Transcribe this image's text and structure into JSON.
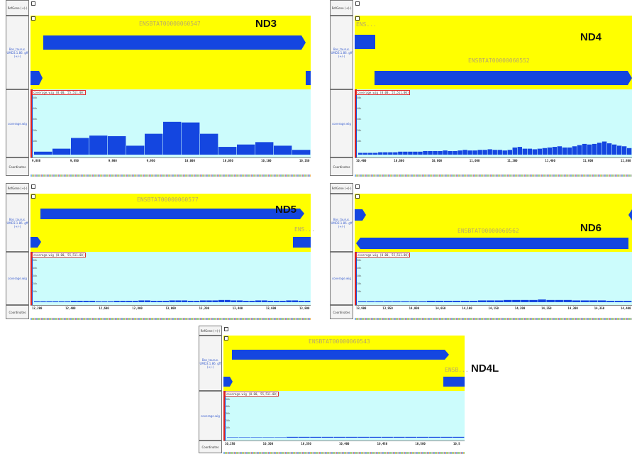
{
  "panels": [
    {
      "id": "nd3",
      "label": "ND3",
      "transcripts": [
        "ENSBTAT00000060547"
      ],
      "coverage_title": "coverage.wig (0.00, 55,511.00)",
      "yticks": [
        "50k",
        "40k",
        "30k",
        "20k",
        "10k"
      ],
      "coord_ticks": [
        "9,888",
        "9,850",
        "9,900",
        "9,950",
        "10,000",
        "10,050",
        "10,100",
        "10,150"
      ],
      "coverage": [
        0.05,
        0.1,
        0.28,
        0.32,
        0.31,
        0.15,
        0.35,
        0.55,
        0.54,
        0.35,
        0.13,
        0.17,
        0.21,
        0.15,
        0.08
      ]
    },
    {
      "id": "nd4",
      "label": "ND4",
      "transcripts": [
        "ENS...",
        "ENSBTAT00000060552"
      ],
      "coverage_title": "coverage.wig (0.00, 55,511.00)",
      "yticks": [
        "50k",
        "40k",
        "30k",
        "20k",
        "10k"
      ],
      "coord_ticks": [
        "10,400",
        "10,600",
        "10,800",
        "11,000",
        "11,200",
        "11,400",
        "11,600",
        "11,800"
      ],
      "coverage": [
        0.03,
        0.03,
        0.03,
        0.03,
        0.04,
        0.04,
        0.04,
        0.04,
        0.05,
        0.05,
        0.05,
        0.05,
        0.05,
        0.06,
        0.06,
        0.06,
        0.06,
        0.07,
        0.06,
        0.06,
        0.07,
        0.08,
        0.07,
        0.07,
        0.08,
        0.08,
        0.09,
        0.08,
        0.08,
        0.07,
        0.08,
        0.12,
        0.13,
        0.1,
        0.1,
        0.09,
        0.1,
        0.11,
        0.12,
        0.13,
        0.14,
        0.12,
        0.12,
        0.14,
        0.16,
        0.18,
        0.17,
        0.18,
        0.2,
        0.22,
        0.19,
        0.17,
        0.15,
        0.14,
        0.11
      ]
    },
    {
      "id": "nd5",
      "label": "ND5",
      "transcripts": [
        "ENSBTAT00000060577",
        "ENS..."
      ],
      "coverage_title": "coverage.wig (0.00, 55,511.00)",
      "yticks": [
        "50k",
        "40k",
        "30k",
        "20k",
        "10k"
      ],
      "coord_ticks": [
        "12,200",
        "12,400",
        "12,600",
        "12,800",
        "13,000",
        "13,200",
        "13,400",
        "13,600",
        "13,800"
      ],
      "coverage": [
        0.02,
        0.02,
        0.02,
        0.02,
        0.02,
        0.02,
        0.03,
        0.03,
        0.03,
        0.03,
        0.02,
        0.02,
        0.02,
        0.03,
        0.03,
        0.03,
        0.03,
        0.04,
        0.04,
        0.03,
        0.03,
        0.03,
        0.04,
        0.04,
        0.04,
        0.03,
        0.03,
        0.04,
        0.04,
        0.04,
        0.05,
        0.05,
        0.04,
        0.04,
        0.03,
        0.03,
        0.04,
        0.04,
        0.03,
        0.03,
        0.03,
        0.04,
        0.04,
        0.03,
        0.03
      ]
    },
    {
      "id": "nd6",
      "label": "ND6",
      "transcripts": [
        "ENSBTAT00000060562"
      ],
      "coverage_title": "coverage.wig (0.00, 55,511.00)",
      "yticks": [
        "50k",
        "40k",
        "30k",
        "20k",
        "10k"
      ],
      "coord_ticks": [
        "13,900",
        "13,950",
        "14,000",
        "14,050",
        "14,100",
        "14,150",
        "14,200",
        "14,250",
        "14,300",
        "14,350",
        "14,400"
      ],
      "coverage": [
        0.02,
        0.02,
        0.02,
        0.02,
        0.02,
        0.02,
        0.02,
        0.02,
        0.03,
        0.03,
        0.03,
        0.03,
        0.03,
        0.03,
        0.04,
        0.04,
        0.04,
        0.05,
        0.05,
        0.05,
        0.05,
        0.06,
        0.05,
        0.05,
        0.05,
        0.04,
        0.04,
        0.04,
        0.04,
        0.03,
        0.03,
        0.03
      ]
    },
    {
      "id": "nd4l",
      "label": "ND4L",
      "transcripts": [
        "ENSBTAT00000060543",
        "ENSB..."
      ],
      "coverage_title": "coverage.wig (0.00, 55,511.00)",
      "yticks": [
        "50k",
        "40k",
        "30k",
        "20k",
        "10k"
      ],
      "coord_ticks": [
        "10,250",
        "10,300",
        "10,350",
        "10,400",
        "10,450",
        "10,500",
        "10,5"
      ],
      "coverage": [
        0.01,
        0.01,
        0.01,
        0.01,
        0.01,
        0.02,
        0.02,
        0.02,
        0.02,
        0.02,
        0.02,
        0.02,
        0.02,
        0.02,
        0.02,
        0.02,
        0.02,
        0.02,
        0.02,
        0.02
      ]
    }
  ],
  "track_labels": {
    "refgene": "RefGene (+)-)",
    "gff": "Bos_taurus. UMD3.1.86. gff (+/-)",
    "coverage": "coverage.wig",
    "coordinates": "Coordinates"
  },
  "colors": {
    "gene_bg": "#ffff00",
    "cov_bg": "#ccfcfc",
    "feature": "#1446e0",
    "bar": "#1446e0"
  }
}
